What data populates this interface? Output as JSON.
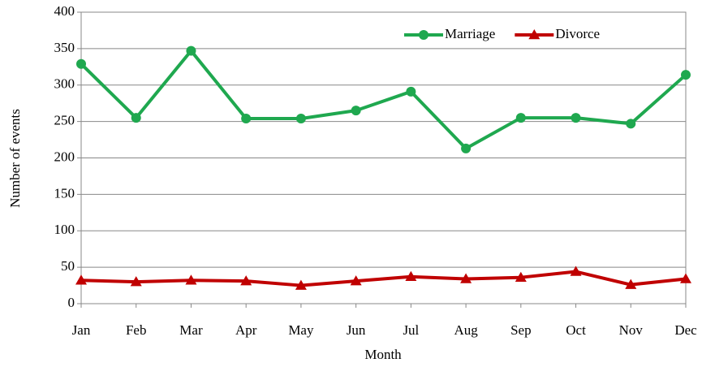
{
  "chart_data": {
    "type": "line",
    "xlabel": "Month",
    "ylabel": "Number of events",
    "categories": [
      "Jan",
      "Feb",
      "Mar",
      "Apr",
      "May",
      "Jun",
      "Jul",
      "Aug",
      "Sep",
      "Oct",
      "Nov",
      "Dec"
    ],
    "series": [
      {
        "name": "Marriage",
        "color": "#1fa84f",
        "marker": "circle",
        "values": [
          329,
          255,
          347,
          254,
          254,
          265,
          291,
          213,
          255,
          255,
          247,
          314
        ]
      },
      {
        "name": "Divorce",
        "color": "#c00000",
        "marker": "triangle",
        "values": [
          32,
          30,
          32,
          31,
          25,
          31,
          37,
          34,
          36,
          44,
          26,
          34
        ]
      }
    ],
    "ylim": [
      0,
      400
    ],
    "yticks": [
      0,
      50,
      100,
      150,
      200,
      250,
      300,
      350,
      400
    ],
    "grid": true,
    "legend": "top-right"
  }
}
